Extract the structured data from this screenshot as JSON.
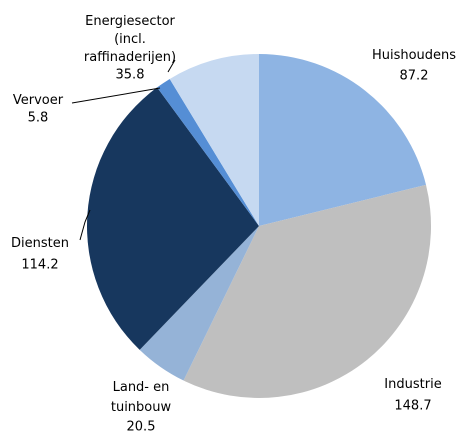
{
  "chart_data": {
    "type": "pie",
    "categories": [
      "Huishoudens",
      "Industrie",
      "Land- en\ntuinbouw",
      "Diensten",
      "Vervoer",
      "Energiesector\n(incl.\nraffinaderijen)"
    ],
    "values": [
      87.2,
      148.7,
      20.5,
      114.2,
      5.8,
      35.8
    ],
    "colors": [
      "#8eb4e3",
      "#bfbfbf",
      "#95b3d7",
      "#17375e",
      "#558ed5",
      "#c6d9f1"
    ]
  }
}
